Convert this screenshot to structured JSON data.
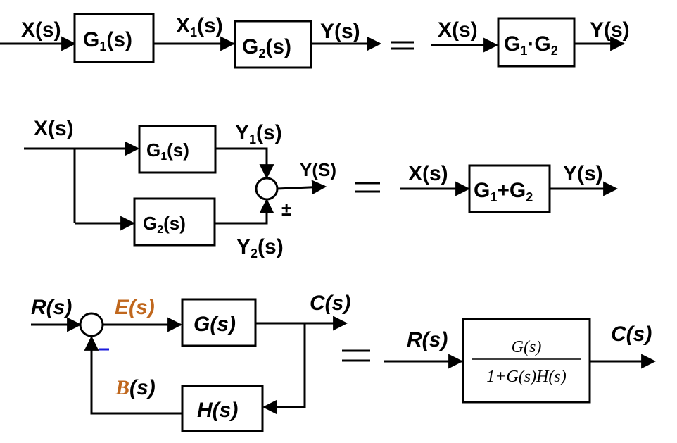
{
  "series": {
    "in": "X(s)",
    "g1": "G",
    "g1_sub": "1",
    "g1_tail": "(s)",
    "mid": "X",
    "mid_sub": "1",
    "mid_tail": "(s)",
    "g2": "G",
    "g2_sub": "2",
    "g2_tail": "(s)",
    "out": "Y(s)",
    "eq_in": "X(s)",
    "eq_box_a": "G",
    "eq_box_a_sub": "1",
    "eq_box_dot": "·",
    "eq_box_b": "G",
    "eq_box_b_sub": "2",
    "eq_out": "Y(s)"
  },
  "parallel": {
    "in": "X(s)",
    "g1": "G",
    "g1_sub": "1",
    "g1_tail": "(s)",
    "g2": "G",
    "g2_sub": "2",
    "g2_tail": "(s)",
    "y1": "Y",
    "y1_sub": "1",
    "y1_tail": "(s)",
    "y2": "Y",
    "y2_sub": "2",
    "y2_tail": "(s)",
    "out": "Y(S)",
    "sign": "±",
    "eq_in": "X(s)",
    "eq_box_a": "G",
    "eq_box_a_sub": "1",
    "eq_box_plus": "+G",
    "eq_box_b_sub": "2",
    "eq_out": "Y(s)"
  },
  "feedback": {
    "in": "R(s)",
    "error_e": "E",
    "error_tail": "(s)",
    "g": "G(s)",
    "out": "C(s)",
    "feedback_b": "B",
    "feedback_tail": "(s)",
    "h": "H(s)",
    "sign": "–",
    "eq_in": "R(s)",
    "eq_num": "G(s)",
    "eq_den": "1+G(s)H(s)",
    "eq_out": "C(s)"
  },
  "colors": {
    "accent_orange": "#c0671d",
    "minus_blue": "#1a1adc"
  }
}
